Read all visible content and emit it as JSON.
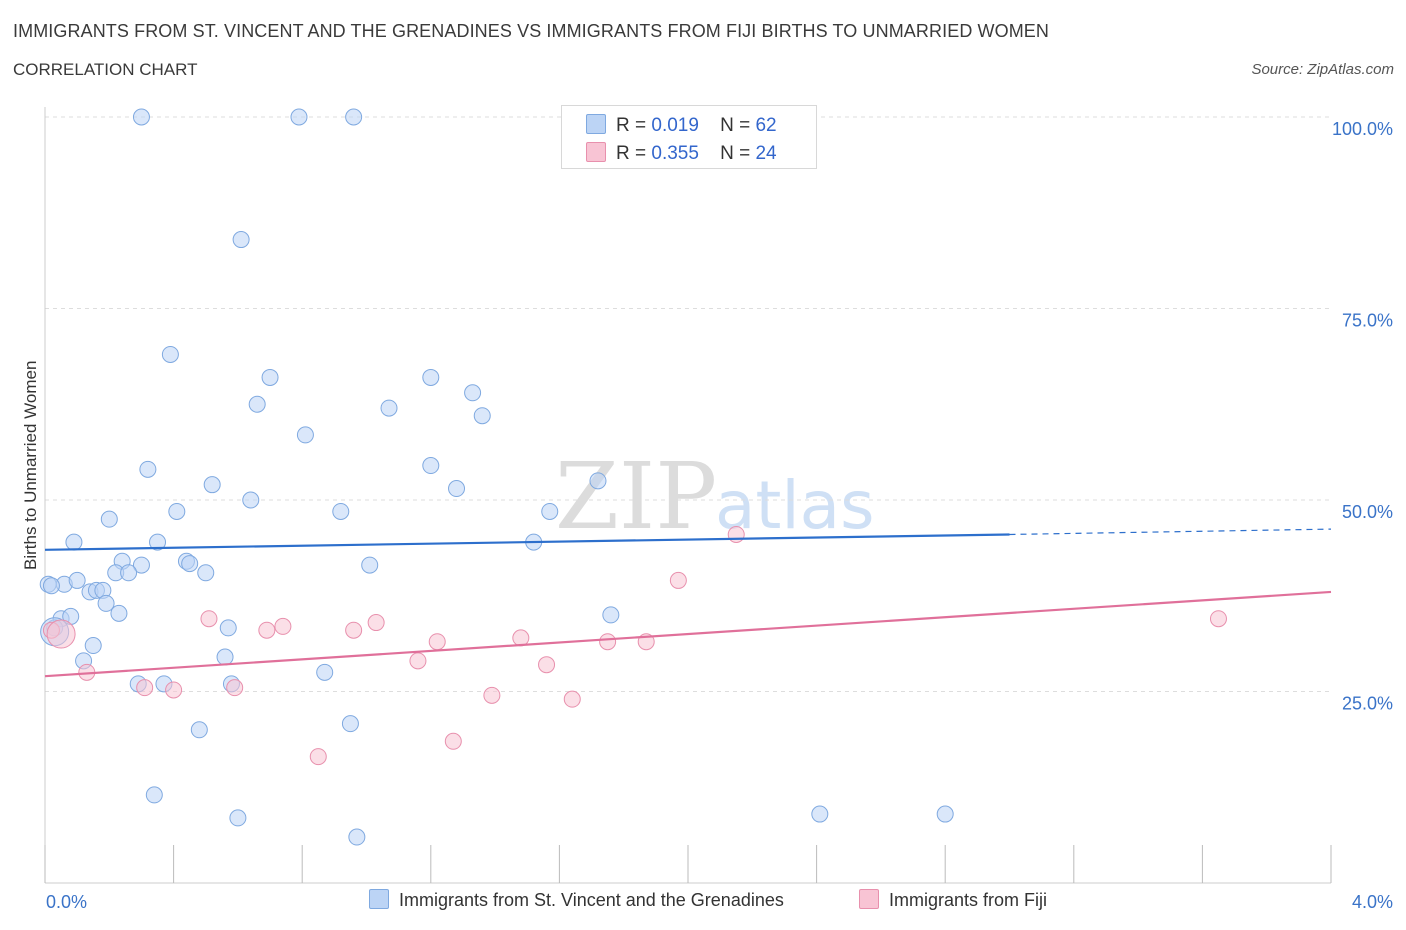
{
  "header": {
    "title": "IMMIGRANTS FROM ST. VINCENT AND THE GRENADINES VS IMMIGRANTS FROM FIJI BIRTHS TO UNMARRIED WOMEN",
    "subtitle": "CORRELATION CHART",
    "source": "Source: ZipAtlas.com"
  },
  "stats": {
    "blue": {
      "r_label": "R =",
      "r_value": "0.019",
      "n_label": "N =",
      "n_value": "62"
    },
    "pink": {
      "r_label": "R =",
      "r_value": "0.355",
      "n_label": "N =",
      "n_value": "24"
    }
  },
  "legend": {
    "blue": "Immigrants from St. Vincent and the Grenadines",
    "pink": "Immigrants from Fiji"
  },
  "colors": {
    "blue_fill": "#bcd4f5",
    "blue_stroke": "#7fa9e0",
    "blue_line": "#2d6fcc",
    "pink_fill": "#f8c4d4",
    "pink_stroke": "#e890ad",
    "pink_line": "#e0709a",
    "axis_label": "#3a73c8",
    "grid": "#dddddd"
  },
  "watermark": {
    "zip": "ZIP",
    "atlas": "atlas"
  },
  "chart_data": {
    "type": "scatter",
    "ylabel": "Births to Unmarried Women",
    "xlim": [
      0,
      4
    ],
    "ylim": [
      0,
      100
    ],
    "x_tick_labels": [
      "0.0%",
      "4.0%"
    ],
    "y_ticks": [
      25,
      50,
      75,
      100
    ],
    "y_tick_labels": [
      "25.0%",
      "50.0%",
      "75.0%",
      "100.0%"
    ],
    "grid": true,
    "legend_position": "bottom",
    "series": [
      {
        "name": "Immigrants from St. Vincent and the Grenadines",
        "color": "#7fa9e0",
        "trend": {
          "x": [
            0,
            3.0
          ],
          "y": [
            43.5,
            45.5
          ],
          "dashed_to": [
            4.0,
            46.2
          ]
        },
        "points": [
          [
            0.3,
            100
          ],
          [
            0.79,
            100
          ],
          [
            0.96,
            100
          ],
          [
            0.61,
            84
          ],
          [
            0.39,
            69
          ],
          [
            0.7,
            66
          ],
          [
            1.2,
            66
          ],
          [
            1.33,
            64
          ],
          [
            0.66,
            62.5
          ],
          [
            1.07,
            62
          ],
          [
            1.36,
            61
          ],
          [
            0.81,
            58.5
          ],
          [
            0.32,
            54
          ],
          [
            1.2,
            54.5
          ],
          [
            0.52,
            52
          ],
          [
            1.28,
            51.5
          ],
          [
            1.72,
            52.5
          ],
          [
            0.64,
            50
          ],
          [
            1.57,
            48.5
          ],
          [
            0.41,
            48.5
          ],
          [
            0.92,
            48.5
          ],
          [
            0.2,
            47.5
          ],
          [
            0.09,
            44.5
          ],
          [
            0.35,
            44.5
          ],
          [
            1.52,
            44.5
          ],
          [
            0.24,
            42
          ],
          [
            0.3,
            41.5
          ],
          [
            0.44,
            42
          ],
          [
            0.45,
            41.7
          ],
          [
            1.01,
            41.5
          ],
          [
            0.22,
            40.5
          ],
          [
            0.26,
            40.5
          ],
          [
            0.5,
            40.5
          ],
          [
            0.06,
            39
          ],
          [
            0.1,
            39.5
          ],
          [
            0.01,
            39
          ],
          [
            0.14,
            38
          ],
          [
            0.16,
            38.2
          ],
          [
            0.18,
            38.2
          ],
          [
            0.19,
            36.5
          ],
          [
            0.23,
            35.2
          ],
          [
            0.05,
            34.5
          ],
          [
            0.08,
            34.8
          ],
          [
            0.03,
            33.3
          ],
          [
            0.57,
            33.3
          ],
          [
            1.76,
            35
          ],
          [
            0.15,
            31
          ],
          [
            0.12,
            29
          ],
          [
            0.56,
            29.5
          ],
          [
            0.87,
            27.5
          ],
          [
            0.29,
            26
          ],
          [
            0.37,
            26
          ],
          [
            0.58,
            26
          ],
          [
            0.48,
            20
          ],
          [
            0.95,
            20.8
          ],
          [
            0.34,
            11.5
          ],
          [
            0.6,
            8.5
          ],
          [
            0.97,
            6
          ],
          [
            2.41,
            9
          ],
          [
            2.8,
            9
          ],
          [
            0.03,
            32.8
          ],
          [
            0.02,
            38.8
          ]
        ]
      },
      {
        "name": "Immigrants from Fiji",
        "color": "#e890ad",
        "trend": {
          "x": [
            0,
            4.0
          ],
          "y": [
            27,
            38
          ]
        },
        "points": [
          [
            0.02,
            33
          ],
          [
            0.13,
            27.5
          ],
          [
            0.31,
            25.5
          ],
          [
            0.4,
            25.2
          ],
          [
            0.51,
            34.5
          ],
          [
            0.59,
            25.5
          ],
          [
            0.69,
            33
          ],
          [
            0.74,
            33.5
          ],
          [
            0.85,
            16.5
          ],
          [
            0.96,
            33
          ],
          [
            1.03,
            34
          ],
          [
            1.16,
            29
          ],
          [
            1.22,
            31.5
          ],
          [
            1.27,
            18.5
          ],
          [
            1.39,
            24.5
          ],
          [
            1.48,
            32
          ],
          [
            1.56,
            28.5
          ],
          [
            1.64,
            24
          ],
          [
            1.75,
            31.5
          ],
          [
            1.87,
            31.5
          ],
          [
            1.97,
            39.5
          ],
          [
            2.15,
            45.5
          ],
          [
            3.65,
            34.5
          ],
          [
            0.05,
            32.5
          ]
        ]
      }
    ]
  }
}
